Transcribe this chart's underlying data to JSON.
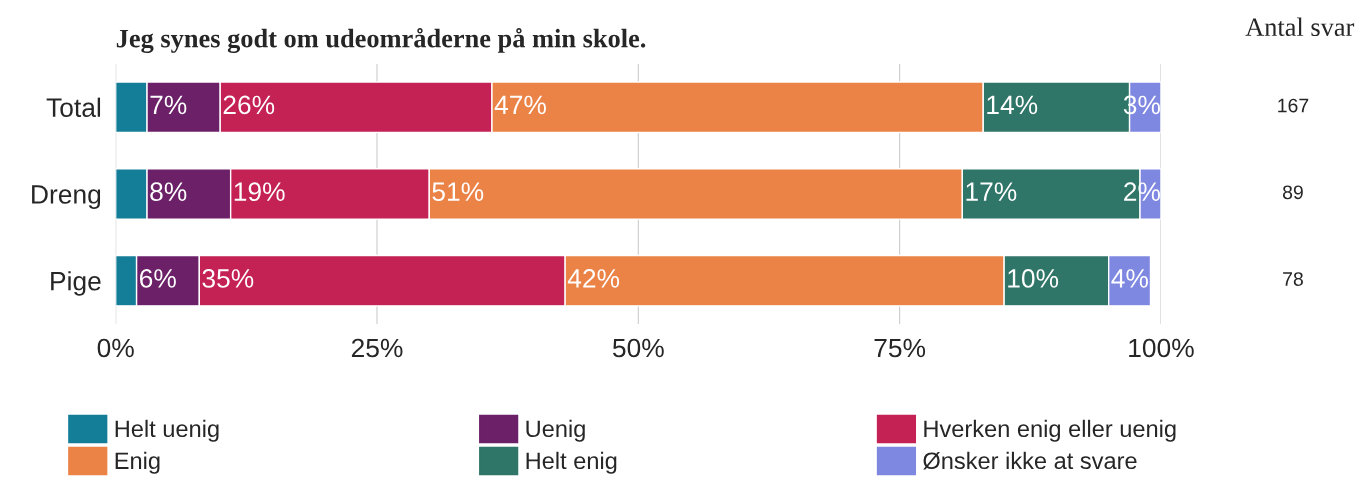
{
  "chart_data": {
    "type": "bar",
    "orientation": "horizontal",
    "stacked": true,
    "title": "Jeg synes godt om udeområderne på min skole.",
    "categories": [
      "Total",
      "Dreng",
      "Pige"
    ],
    "series": [
      {
        "name": "Helt uenig",
        "color": "#147e98",
        "values": [
          3,
          3,
          2
        ],
        "value_labels": [
          null,
          null,
          null
        ]
      },
      {
        "name": "Uenig",
        "color": "#6b2068",
        "values": [
          7,
          8,
          6
        ],
        "value_labels": [
          "7%",
          "8%",
          "6%"
        ]
      },
      {
        "name": "Hverken enig eller uenig",
        "color": "#c42155",
        "values": [
          26,
          19,
          35
        ],
        "value_labels": [
          "26%",
          "19%",
          "35%"
        ]
      },
      {
        "name": "Enig",
        "color": "#eb8347",
        "values": [
          47,
          51,
          42
        ],
        "value_labels": [
          "47%",
          "51%",
          "42%"
        ]
      },
      {
        "name": "Helt enig",
        "color": "#2f7568",
        "values": [
          14,
          17,
          10
        ],
        "value_labels": [
          "14%",
          "17%",
          "10%"
        ]
      },
      {
        "name": "Ønsker ikke at svare",
        "color": "#7f88e0",
        "values": [
          3,
          2,
          4
        ],
        "value_labels": [
          "3%",
          "2%",
          "4%"
        ]
      }
    ],
    "xlim": [
      0,
      100
    ],
    "xticks": [
      {
        "value": 0,
        "label": "0%"
      },
      {
        "value": 25,
        "label": "25%"
      },
      {
        "value": 50,
        "label": "50%"
      },
      {
        "value": 75,
        "label": "75%"
      },
      {
        "value": 100,
        "label": "100%"
      }
    ],
    "grid": "x",
    "legend": "bottom",
    "annotations": [
      "Antal svar",
      "167",
      "89",
      "78"
    ]
  }
}
